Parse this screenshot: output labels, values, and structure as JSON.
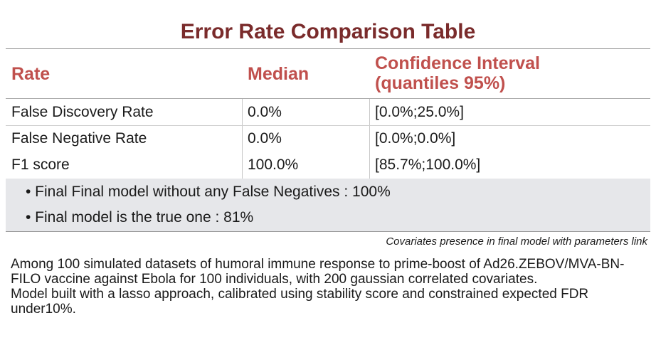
{
  "title": "Error Rate Comparison Table",
  "table": {
    "headers": {
      "rate": "Rate",
      "median": "Median",
      "ci_line1": "Confidence Interval",
      "ci_line2": "(quantiles 95%)"
    },
    "rows": [
      {
        "rate": "False Discovery Rate",
        "median": "0.0%",
        "ci": "[0.0%;25.0%]"
      },
      {
        "rate": "False Negative Rate",
        "median": "0.0%",
        "ci": "[0.0%;0.0%]"
      },
      {
        "rate": "F1 score",
        "median": "100.0%",
        "ci": "[85.7%;100.0%]"
      }
    ]
  },
  "summary": {
    "bullet1": "• Final Final model without any False Negatives : 100%",
    "bullet2": "• Final model is the true one : 81%"
  },
  "caption": "Covariates presence in final model with parameters link",
  "description": {
    "para1": "Among 100 simulated datasets of humoral immune response to prime-boost of Ad26.ZEBOV/MVA-BN-FILO vaccine against Ebola for 100 individuals, with 200 gaussian correlated covariates.",
    "para2": "Model built with a lasso approach, calibrated using stability score and constrained expected FDR under10%."
  },
  "colors": {
    "title": "#7a2b2b",
    "header": "#c0504d",
    "summary_bg": "#e6e7ea"
  }
}
